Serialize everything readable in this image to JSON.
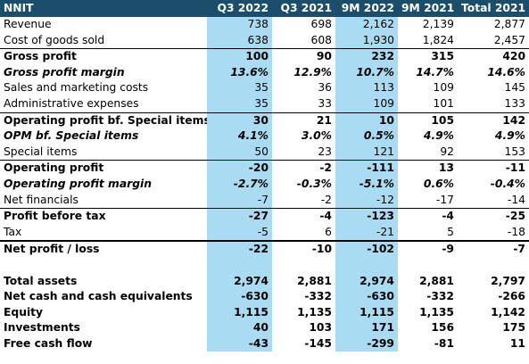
{
  "table": {
    "headers": [
      "NNIT",
      "Q3 2022",
      "Q3 2021",
      "9M 2022",
      "9M 2021",
      "Total 2021"
    ],
    "rows": [
      {
        "style": "normal",
        "cells": [
          "Revenue",
          "738",
          "698",
          "2,162",
          "2,139",
          "2,877"
        ]
      },
      {
        "style": "normal",
        "cells": [
          "Cost of goods sold",
          "638",
          "608",
          "1,930",
          "1,824",
          "2,457"
        ]
      },
      {
        "style": "bold",
        "border": "top",
        "cells": [
          "Gross profit",
          "100",
          "90",
          "232",
          "315",
          "420"
        ]
      },
      {
        "style": "italic",
        "cells": [
          "Gross profit margin",
          "13.6%",
          "12.9%",
          "10.7%",
          "14.7%",
          "14.6%"
        ]
      },
      {
        "style": "normal",
        "cells": [
          "Sales and marketing costs",
          "35",
          "36",
          "113",
          "109",
          "145"
        ]
      },
      {
        "style": "normal",
        "cells": [
          "Administrative expenses",
          "35",
          "33",
          "109",
          "101",
          "133"
        ]
      },
      {
        "style": "bold",
        "border": "top",
        "cells": [
          "Operating profit bf. Special items",
          "30",
          "21",
          "10",
          "105",
          "142"
        ]
      },
      {
        "style": "italic",
        "cells": [
          "OPM bf. Special items",
          "4.1%",
          "3.0%",
          "0.5%",
          "4.9%",
          "4.9%"
        ]
      },
      {
        "style": "normal",
        "cells": [
          "Special items",
          "50",
          "23",
          "121",
          "92",
          "153"
        ]
      },
      {
        "style": "bold",
        "border": "top",
        "cells": [
          "Operating profit",
          "-20",
          "-2",
          "-111",
          "13",
          "-11"
        ]
      },
      {
        "style": "italic",
        "cells": [
          "Operating profit margin",
          "-2.7%",
          "-0.3%",
          "-5.1%",
          "0.6%",
          "-0.4%"
        ]
      },
      {
        "style": "normal",
        "cells": [
          "Net financials",
          "-7",
          "-2",
          "-12",
          "-17",
          "-14"
        ]
      },
      {
        "style": "bold",
        "border": "top",
        "cells": [
          "Profit before tax",
          "-27",
          "-4",
          "-123",
          "-4",
          "-25"
        ]
      },
      {
        "style": "normal",
        "cells": [
          "Tax",
          "-5",
          "6",
          "-21",
          "5",
          "-18"
        ]
      },
      {
        "style": "bold",
        "border": "top-thick",
        "cells": [
          "Net profit / loss",
          "-22",
          "-10",
          "-102",
          "-9",
          "-7"
        ]
      },
      {
        "style": "spacer",
        "cells": [
          "",
          "",
          "",
          "",
          "",
          ""
        ]
      },
      {
        "style": "bold",
        "cells": [
          "Total assets",
          "2,974",
          "2,881",
          "2,974",
          "2,881",
          "2,797"
        ]
      },
      {
        "style": "bold",
        "cells": [
          "Net cash and cash equivalents",
          "-630",
          "-332",
          "-630",
          "-332",
          "-266"
        ]
      },
      {
        "style": "bold",
        "cells": [
          "Equity",
          "1,115",
          "1,135",
          "1,115",
          "1,135",
          "1,142"
        ]
      },
      {
        "style": "bold",
        "cells": [
          "Investments",
          "40",
          "103",
          "171",
          "156",
          "175"
        ]
      },
      {
        "style": "bold",
        "cells": [
          "Free cash flow",
          "-43",
          "-145",
          "-299",
          "-81",
          "11"
        ]
      }
    ]
  },
  "colors": {
    "header_bg": "#1b4e6b",
    "header_text": "#ffffff",
    "highlight_col_bg": "#a9dcf3"
  }
}
